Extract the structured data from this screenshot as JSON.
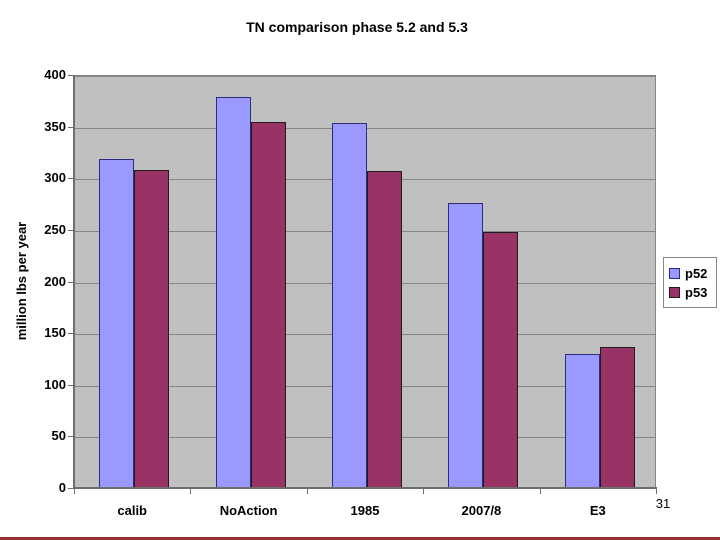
{
  "page_number": "31",
  "chart_data": {
    "type": "bar",
    "title": "TN comparison phase 5.2 and 5.3",
    "xlabel": "",
    "ylabel": "million lbs per year",
    "categories": [
      "calib",
      "NoAction",
      "1985",
      "2007/8",
      "E3"
    ],
    "series": [
      {
        "name": "p52",
        "color": "#9999FF",
        "border_color": "#2b2b80",
        "values": [
          320,
          380,
          354,
          277,
          131
        ]
      },
      {
        "name": "p53",
        "color": "#993366",
        "border_color": "#1c1c1c",
        "values": [
          309,
          355,
          308,
          249,
          138
        ]
      }
    ],
    "ylim": [
      0,
      400
    ],
    "ytick_step": 50,
    "grid": true,
    "legend_position": "right",
    "plot_bg": "#C0C0C0",
    "gridline_color": "#868686",
    "axis_color": "#6e6e6e",
    "text_color": "#000000"
  },
  "decor": {
    "bottom_line_color": "#993333"
  }
}
